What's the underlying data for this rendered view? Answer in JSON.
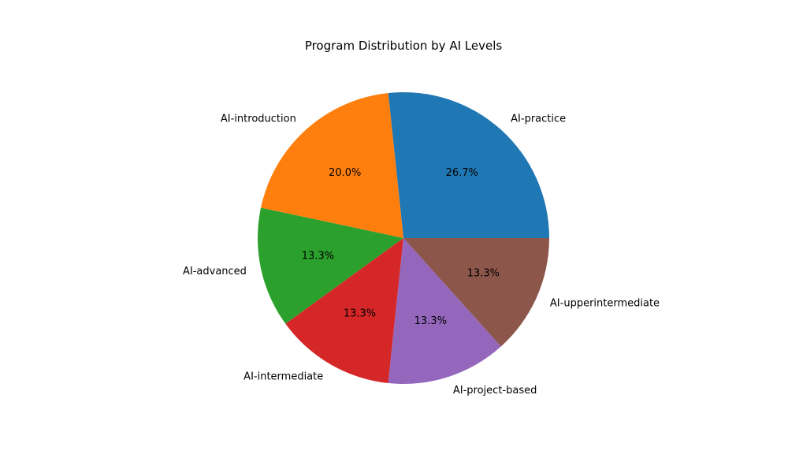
{
  "chart_data": {
    "type": "pie",
    "title": "Program Distribution by AI Levels",
    "categories": [
      "AI-practice",
      "AI-introduction",
      "AI-advanced",
      "AI-intermediate",
      "AI-project-based",
      "AI-upperintermediate"
    ],
    "values": [
      4,
      3,
      2,
      2,
      2,
      2
    ],
    "percent_labels": [
      "26.7%",
      "20.0%",
      "13.3%",
      "13.3%",
      "13.3%",
      "13.3%"
    ],
    "colors": [
      "#1f77b4",
      "#ff7f0e",
      "#2ca02c",
      "#d62728",
      "#9467bd",
      "#8c564b"
    ],
    "start_angle_deg": 0,
    "direction": "counterclockwise",
    "legend": "none"
  }
}
